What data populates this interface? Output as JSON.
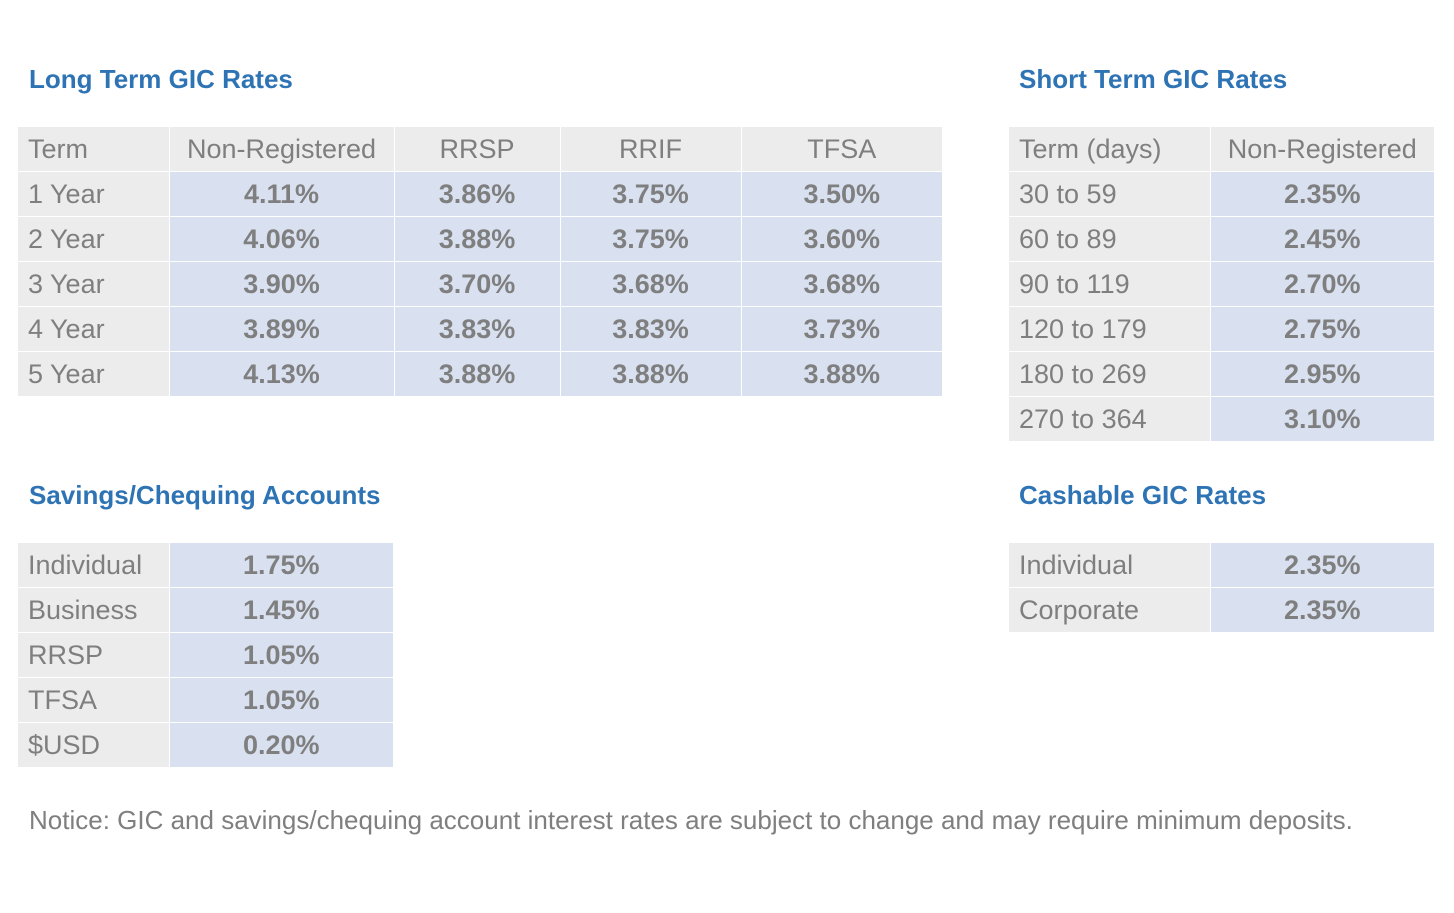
{
  "long_term": {
    "title": "Long Term GIC Rates",
    "headers": [
      "Term",
      "Non-Registered",
      "RRSP",
      "RRIF",
      "TFSA"
    ],
    "rows": [
      [
        "1 Year",
        "4.11%",
        "3.86%",
        "3.75%",
        "3.50%"
      ],
      [
        "2 Year",
        "4.06%",
        "3.88%",
        "3.75%",
        "3.60%"
      ],
      [
        "3 Year",
        "3.90%",
        "3.70%",
        "3.68%",
        "3.68%"
      ],
      [
        "4 Year",
        "3.89%",
        "3.83%",
        "3.83%",
        "3.73%"
      ],
      [
        "5 Year",
        "4.13%",
        "3.88%",
        "3.88%",
        "3.88%"
      ]
    ]
  },
  "short_term": {
    "title": "Short Term GIC Rates",
    "headers": [
      "Term (days)",
      "Non-Registered"
    ],
    "rows": [
      [
        "30 to 59",
        "2.35%"
      ],
      [
        "60 to 89",
        "2.45%"
      ],
      [
        "90 to 119",
        "2.70%"
      ],
      [
        "120 to 179",
        "2.75%"
      ],
      [
        "180 to 269",
        "2.95%"
      ],
      [
        "270 to 364",
        "3.10%"
      ]
    ]
  },
  "savings": {
    "title": "Savings/Chequing Accounts",
    "rows": [
      [
        "Individual",
        "1.75%"
      ],
      [
        "Business",
        "1.45%"
      ],
      [
        "RRSP",
        "1.05%"
      ],
      [
        "TFSA",
        "1.05%"
      ],
      [
        "$USD",
        "0.20%"
      ]
    ]
  },
  "cashable": {
    "title": "Cashable GIC Rates",
    "rows": [
      [
        "Individual",
        "2.35%"
      ],
      [
        "Corporate",
        "2.35%"
      ]
    ]
  },
  "notice": "Notice: GIC and savings/chequing account interest rates are subject to change and may require minimum deposits.",
  "colors": {
    "title": "#2e74b5",
    "text": "#7f7f7f",
    "label_bg": "#ececec",
    "value_bg": "#d9e1f1"
  }
}
